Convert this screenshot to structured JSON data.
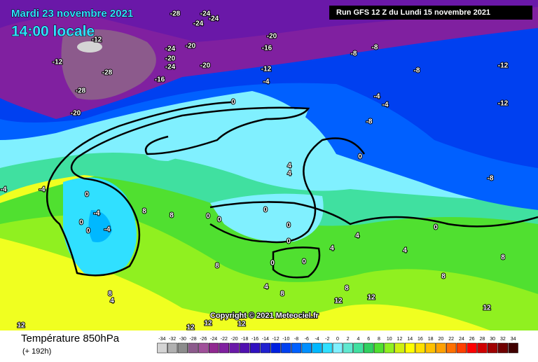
{
  "header": {
    "date": "Mardi 23 novembre 2021",
    "time": "14:00 locale",
    "run": "Run GFS 12 Z du Lundi 15 novembre 2021",
    "copyright": "Copyright © 2021 Meteociel.fr"
  },
  "legend": {
    "title": "Température 850hPa",
    "subtitle": "(+ 192h)",
    "values": [
      -34,
      -32,
      -30,
      -28,
      -26,
      -24,
      -22,
      -20,
      -18,
      -16,
      -14,
      -12,
      -10,
      -8,
      -6,
      -4,
      -2,
      0,
      2,
      4,
      6,
      8,
      10,
      12,
      14,
      16,
      18,
      20,
      22,
      24,
      26,
      28,
      30,
      32,
      34
    ],
    "colors": [
      "#d4d4d4",
      "#b0b0b0",
      "#8c8c8c",
      "#8c5a8c",
      "#a0509a",
      "#902890",
      "#8020a0",
      "#6a18a8",
      "#5010b0",
      "#3010c0",
      "#2020d0",
      "#0020e0",
      "#0040f0",
      "#0060ff",
      "#0090ff",
      "#00b8ff",
      "#30e0ff",
      "#80f0ff",
      "#60e8d0",
      "#40e0a0",
      "#30d060",
      "#50e030",
      "#90f020",
      "#d0f010",
      "#ffff00",
      "#ffe000",
      "#ffc000",
      "#ffa000",
      "#ff7000",
      "#ff4000",
      "#ff0000",
      "#d00000",
      "#a00000",
      "#700000",
      "#400000"
    ]
  },
  "contour_labels": [
    -28,
    -24,
    -24,
    -24,
    -12,
    -20,
    -16,
    -24,
    -20,
    -20,
    -24,
    -20,
    -12,
    -28,
    -28,
    -16,
    -12,
    -4,
    -20,
    -8,
    -8,
    -8,
    -12,
    -12,
    -4,
    -4,
    -8,
    0,
    0,
    -8,
    -4,
    -4,
    0,
    -4,
    -4,
    0,
    0,
    8,
    8,
    0,
    0,
    0,
    0,
    0,
    4,
    4,
    0,
    4,
    4,
    8,
    8,
    0,
    0,
    4,
    4,
    8,
    4,
    8,
    8,
    8,
    12,
    12,
    12,
    12,
    12,
    12,
    12
  ]
}
